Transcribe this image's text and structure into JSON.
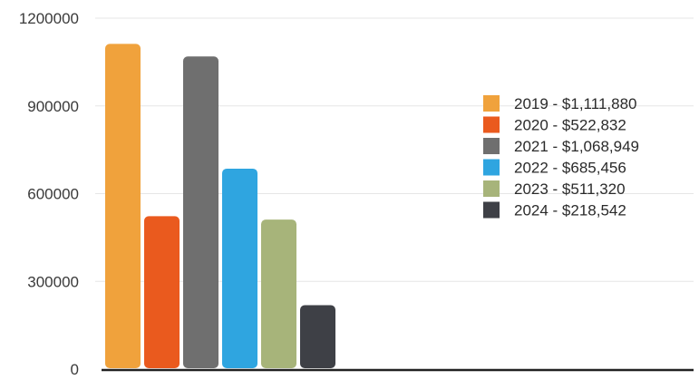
{
  "chart_data": {
    "type": "bar",
    "title": "",
    "xlabel": "",
    "ylabel": "",
    "ylim": [
      0,
      1200000
    ],
    "yticks": [
      0,
      300000,
      600000,
      900000,
      1200000
    ],
    "ytick_labels": [
      "0",
      "300000",
      "600000",
      "900000",
      "1200000"
    ],
    "grid": true,
    "legend_position": "right",
    "categories": [
      "2019",
      "2020",
      "2021",
      "2022",
      "2023",
      "2024"
    ],
    "values": [
      1111880,
      522832,
      1068949,
      685456,
      511320,
      218542
    ],
    "colors": [
      "#f0a23c",
      "#ea5a1e",
      "#6f6f6f",
      "#2fa5e0",
      "#a7b47a",
      "#3e4046"
    ],
    "legend": [
      "2019 - $1,111,880",
      "2020 - $522,832",
      "2021 - $1,068,949",
      "2022 - $685,456",
      "2023 - $511,320",
      "2024 - $218,542"
    ]
  }
}
